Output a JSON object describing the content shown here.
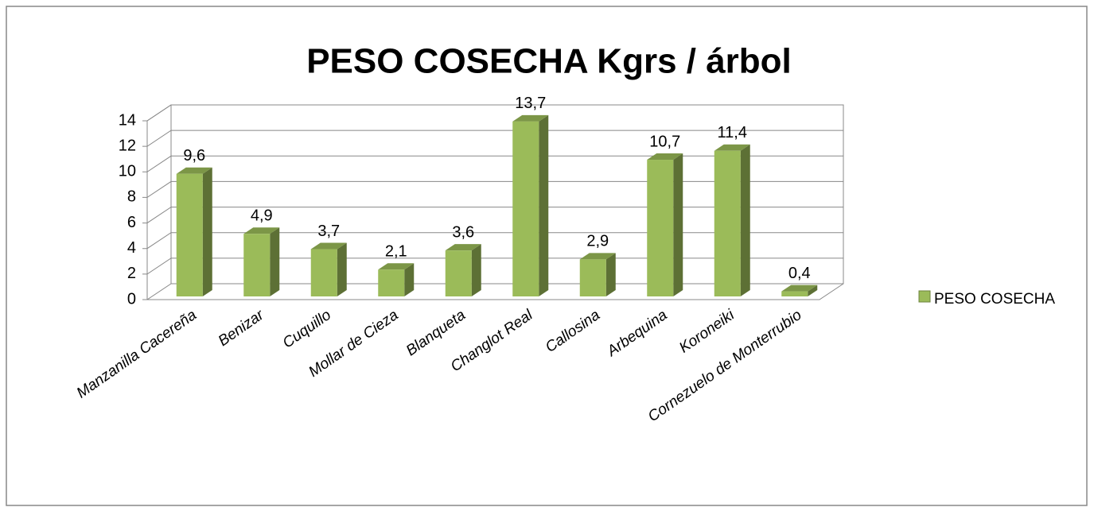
{
  "chart_data": {
    "type": "bar3d",
    "title": "PESO COSECHA  Kgrs / árbol",
    "categories": [
      "Manzanilla Cacereña",
      "Benizar",
      "Cuquillo",
      "Mollar de Cieza",
      "Blanqueta",
      "Changlot Real",
      "Callosina",
      "Arbequina",
      "Koroneiki",
      "Cornezuelo de Monterrubio"
    ],
    "series": [
      {
        "name": "PESO COSECHA",
        "color": "#9bbb59",
        "values": [
          9.6,
          4.9,
          3.7,
          2.1,
          3.6,
          13.7,
          2.9,
          10.7,
          11.4,
          0.4
        ],
        "value_labels": [
          "9,6",
          "4,9",
          "3,7",
          "2,1",
          "3,6",
          "13,7",
          "2,9",
          "10,7",
          "11,4",
          "0,4"
        ]
      }
    ],
    "ylim": [
      0,
      14
    ],
    "yticks": [
      0,
      2,
      4,
      6,
      8,
      10,
      12,
      14
    ],
    "grid": true,
    "legend": "right"
  }
}
